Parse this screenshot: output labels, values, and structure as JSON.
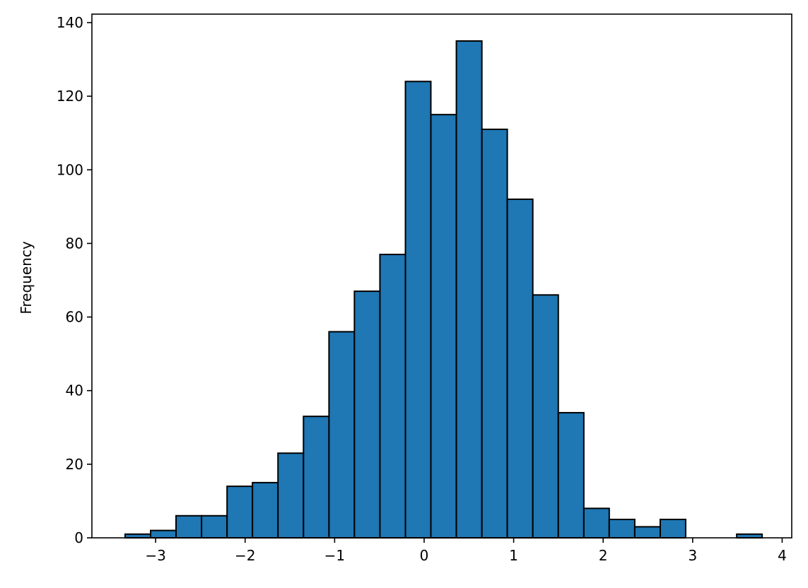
{
  "chart_data": {
    "type": "histogram",
    "y_label": "Frequency",
    "color": "#1f77b4",
    "edgecolor": "#000000",
    "bins": [
      -3.341,
      -3.056,
      -2.772,
      -2.487,
      -2.202,
      -1.918,
      -1.633,
      -1.348,
      -1.063,
      -0.779,
      -0.494,
      -0.209,
      0.075,
      0.36,
      0.645,
      0.929,
      1.214,
      1.499,
      1.784,
      2.068,
      2.353,
      2.638,
      2.922,
      3.207,
      3.492,
      3.776
    ],
    "values": [
      1,
      2,
      6,
      6,
      14,
      15,
      23,
      33,
      56,
      67,
      77,
      124,
      115,
      135,
      111,
      92,
      66,
      34,
      8,
      5,
      3,
      5,
      0,
      0,
      1
    ],
    "xlim": [
      -3.712,
      4.107
    ],
    "ylim": [
      0,
      142.3
    ],
    "xticks": [
      {
        "value": -3,
        "label": "−3"
      },
      {
        "value": -2,
        "label": "−2"
      },
      {
        "value": -1,
        "label": "−1"
      },
      0,
      1,
      2,
      3,
      4
    ],
    "yticks": [
      0,
      20,
      40,
      60,
      80,
      100,
      120,
      140
    ],
    "grid": false
  }
}
